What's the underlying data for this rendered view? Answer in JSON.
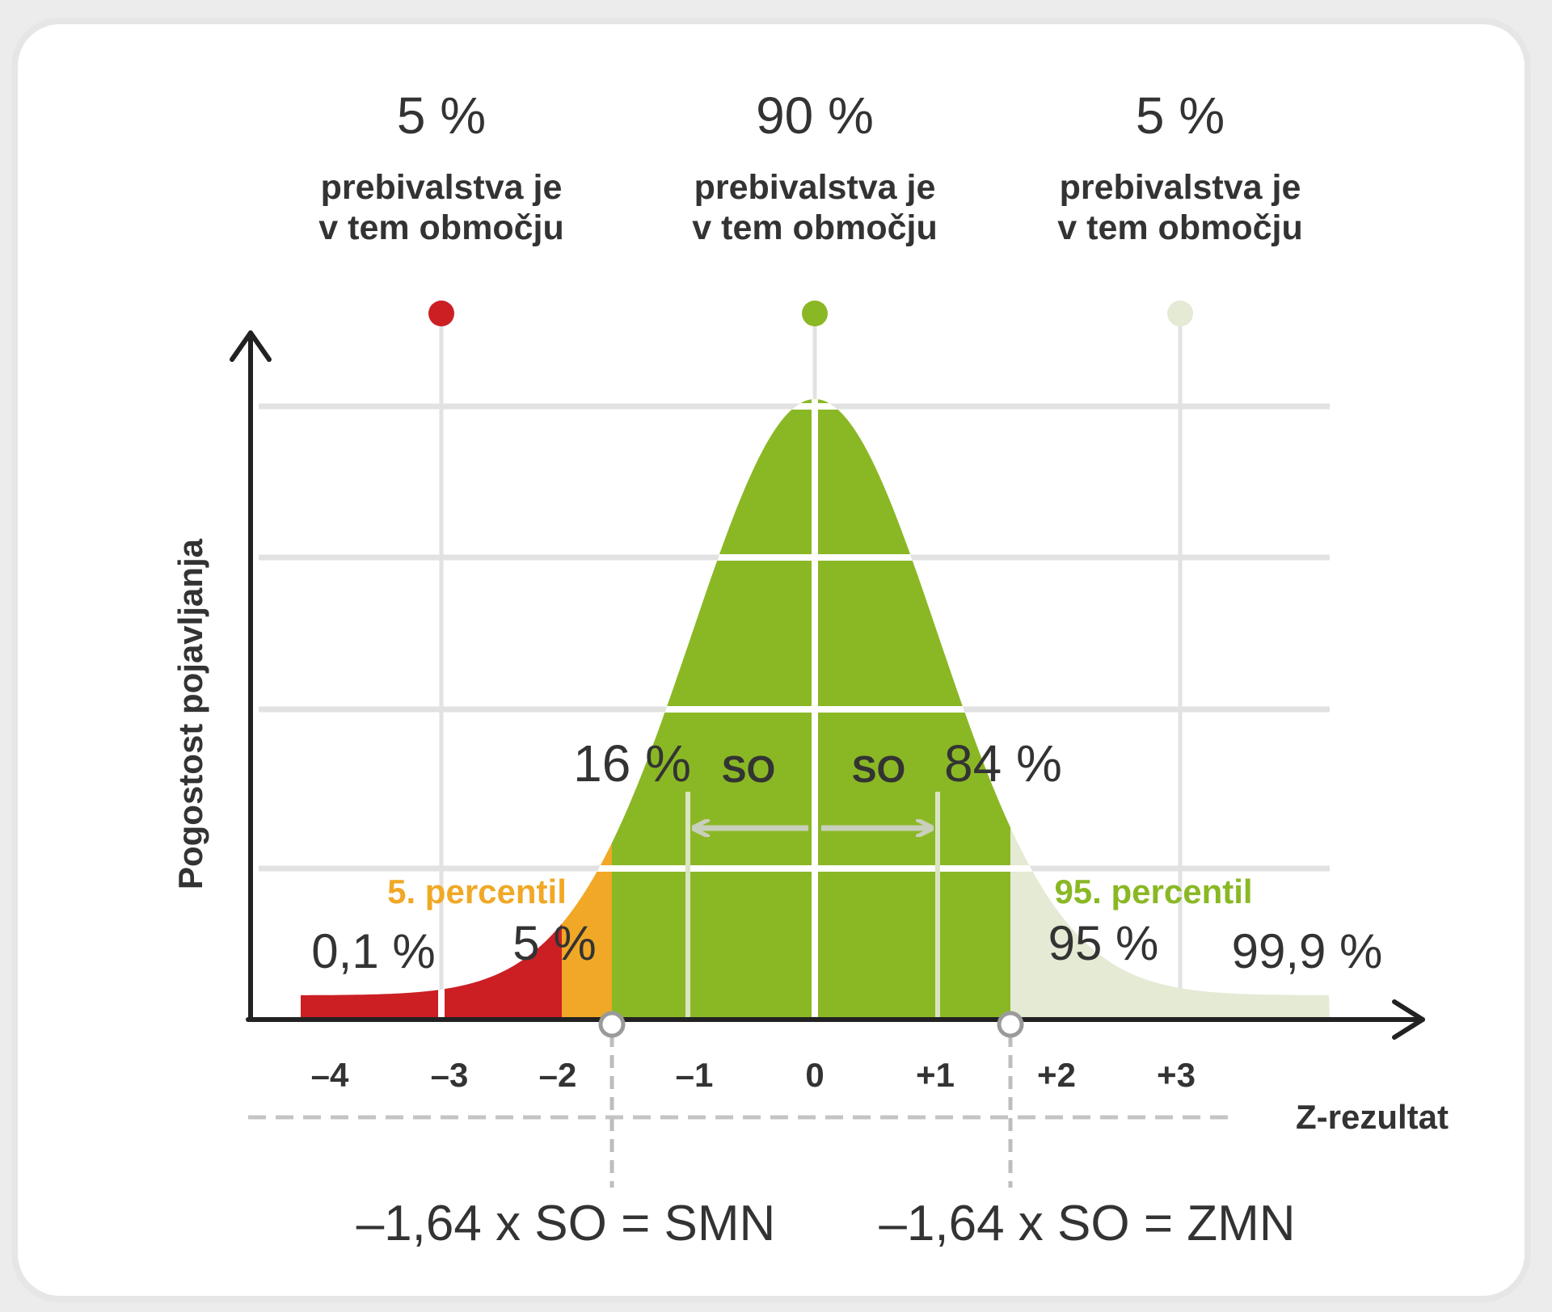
{
  "top_groups": [
    {
      "percent": "5 %",
      "line1": "prebivalstva je",
      "line2": "v tem območju",
      "dot_color": "#cc1f24"
    },
    {
      "percent": "90 %",
      "line1": "prebivalstva je",
      "line2": "v tem območju",
      "dot_color": "#8ab825"
    },
    {
      "percent": "5 %",
      "line1": "prebivalstva je",
      "line2": "v tem območju",
      "dot_color": "#e4ead3"
    }
  ],
  "y_axis_label": "Pogostost pojavljanja",
  "x_axis_label": "Z-rezultat",
  "x_ticks": [
    "–4",
    "–3",
    "–2",
    "–1",
    "0",
    "+1",
    "+2",
    "+3"
  ],
  "so_labels": [
    "SO",
    "SO"
  ],
  "labels": {
    "p16": "16 %",
    "p84": "84 %",
    "percentile5": "5. percentil",
    "percentile95": "95. percentil",
    "p01": "0,1 %",
    "p5": "5 %",
    "p95": "95 %",
    "p999": "99,9 %"
  },
  "formulas": {
    "left": "–1,64 x SO = SMN",
    "right": "–1,64 x SO = ZMN"
  },
  "colors": {
    "red": "#cc1f24",
    "orange": "#f0a826",
    "green": "#8ab825",
    "light_green": "#e4ead3",
    "axis": "#222222",
    "grid": "#e2e2e2",
    "text": "#333333",
    "percentile5": "#f0a826",
    "percentile95": "#8ab825"
  },
  "chart_data": {
    "type": "area",
    "distribution": "normal",
    "x_ticks": [
      -4,
      -3,
      -2,
      -1,
      0,
      1,
      2,
      3
    ],
    "regions": [
      {
        "from": -4,
        "to": -1.64,
        "share_percent": 5
      },
      {
        "from": -1.64,
        "to": 1.64,
        "share_percent": 90
      },
      {
        "from": 1.64,
        "to": 4,
        "share_percent": 5
      }
    ],
    "markers": [
      {
        "z": -1.64,
        "label": "5. percentil"
      },
      {
        "z": 1.64,
        "label": "95. percentil"
      }
    ],
    "cumulative_percent": {
      "-3": 0.1,
      "-1.64": 5,
      "-1": 16,
      "1": 84,
      "1.64": 95,
      "3": 99.9
    }
  }
}
